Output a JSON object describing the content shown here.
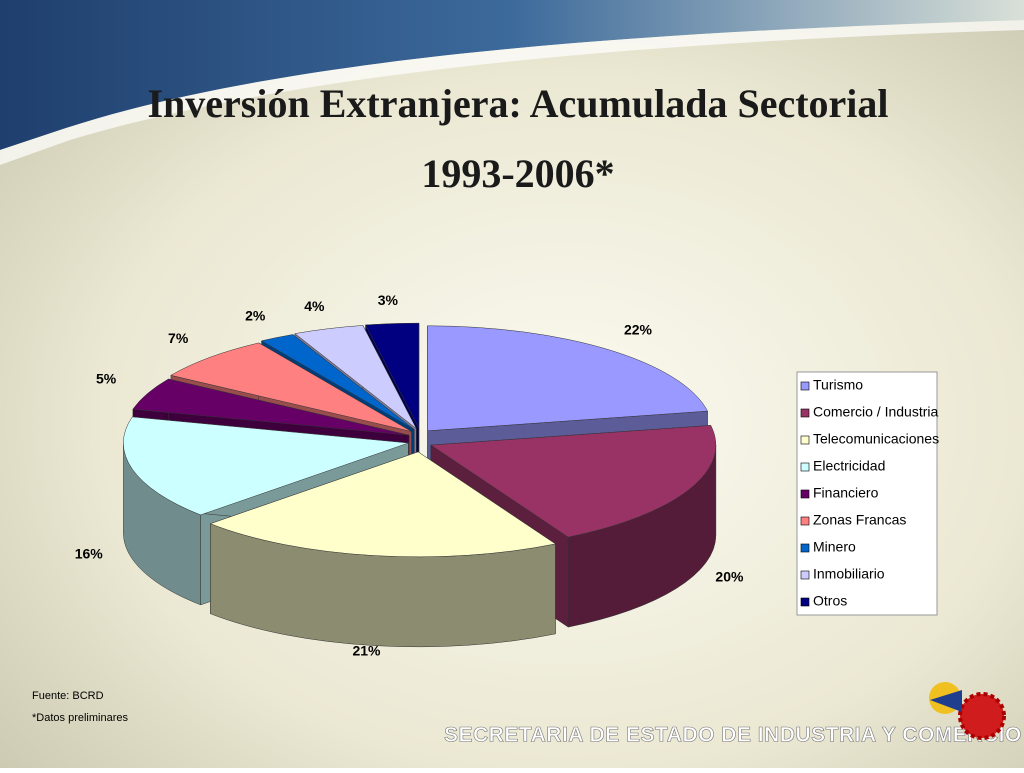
{
  "chart_data": {
    "type": "pie",
    "title": "Inversión Extranjera: Acumulada Sectorial",
    "subtitle": "1993-2006*",
    "categories": [
      "Turismo",
      "Comercio / Industria",
      "Telecomunicaciones",
      "Electricidad",
      "Financiero",
      "Zonas Francas",
      "Minero",
      "Inmobiliario",
      "Otros"
    ],
    "values": [
      22,
      20,
      21,
      16,
      5,
      7,
      2,
      4,
      3
    ],
    "value_labels": [
      "22%",
      "20%",
      "21%",
      "16%",
      "5%",
      "7%",
      "2%",
      "4%",
      "3%"
    ],
    "colors": [
      "#9999ff",
      "#993366",
      "#ffffcc",
      "#ccffff",
      "#660066",
      "#ff8080",
      "#0066cc",
      "#ccccff",
      "#000080"
    ],
    "legend": "right"
  },
  "source": "Fuente: BCRD",
  "note": "*Datos preliminares",
  "footer": "SECRETARIA DE ESTADO DE INDUSTRIA Y COMERCIO"
}
